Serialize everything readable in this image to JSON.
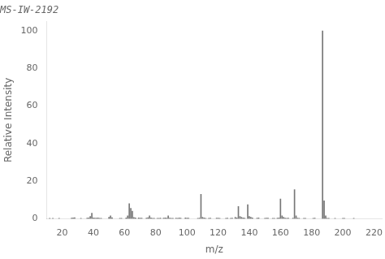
{
  "chart_data": {
    "type": "bar",
    "title": "MS-IW-2192",
    "xlabel": "m/z",
    "ylabel": "Relative Intensity",
    "x": [
      12,
      14,
      18,
      26,
      27,
      28,
      32,
      36,
      37,
      38,
      39,
      40,
      41,
      42,
      43,
      44,
      45,
      50,
      51,
      52,
      57,
      58,
      61,
      62,
      63,
      64,
      65,
      66,
      67,
      69,
      70,
      71,
      74,
      75,
      76,
      77,
      78,
      79,
      81,
      82,
      83,
      85,
      86,
      87,
      88,
      89,
      90,
      91,
      93,
      94,
      95,
      96,
      99,
      100,
      101,
      107,
      108,
      109,
      110,
      111,
      112,
      114,
      115,
      119,
      120,
      121,
      125,
      126,
      128,
      129,
      131,
      132,
      133,
      134,
      135,
      136,
      137,
      139,
      140,
      141,
      142,
      145,
      146,
      150,
      151,
      152,
      155,
      156,
      158,
      159,
      160,
      161,
      162,
      163,
      164,
      165,
      168,
      169,
      170,
      171,
      172,
      175,
      176,
      181,
      182,
      187,
      188,
      189,
      190,
      191,
      195,
      200,
      201,
      207
    ],
    "values": [
      0.3,
      0.2,
      0.3,
      0.4,
      0.5,
      0.6,
      0.3,
      0.4,
      0.5,
      1.2,
      3.0,
      0.5,
      0.4,
      0.4,
      0.5,
      0.3,
      0.3,
      0.8,
      1.5,
      0.6,
      0.3,
      0.3,
      0.5,
      1.5,
      8.0,
      5.5,
      4.0,
      0.7,
      0.5,
      0.5,
      0.4,
      0.4,
      0.4,
      0.6,
      1.5,
      0.5,
      0.3,
      0.3,
      0.3,
      0.3,
      0.4,
      0.4,
      0.5,
      0.4,
      1.5,
      0.4,
      0.3,
      0.3,
      0.4,
      0.3,
      0.5,
      0.4,
      0.5,
      0.4,
      0.4,
      0.3,
      0.4,
      13.0,
      0.8,
      0.5,
      0.3,
      0.3,
      0.4,
      0.4,
      0.4,
      0.3,
      0.3,
      0.4,
      0.3,
      0.4,
      0.8,
      0.5,
      6.5,
      1.2,
      0.8,
      0.5,
      0.4,
      7.5,
      1.2,
      0.8,
      0.5,
      0.4,
      0.5,
      0.3,
      0.4,
      0.4,
      0.3,
      0.3,
      0.4,
      0.5,
      10.5,
      1.5,
      0.8,
      0.4,
      0.3,
      0.4,
      0.4,
      15.5,
      1.5,
      0.4,
      0.3,
      0.3,
      0.3,
      0.3,
      0.4,
      100.0,
      9.5,
      1.5,
      0.3,
      0.3,
      0.3,
      0.3,
      0.3,
      0.3
    ],
    "color": "#777777",
    "xlim": [
      10,
      225
    ],
    "xticks": [
      20,
      40,
      60,
      80,
      100,
      120,
      140,
      160,
      180,
      200,
      220
    ],
    "ylim": [
      0,
      105
    ],
    "yticks": [
      0,
      20,
      40,
      60,
      80,
      100
    ],
    "grid": false
  }
}
